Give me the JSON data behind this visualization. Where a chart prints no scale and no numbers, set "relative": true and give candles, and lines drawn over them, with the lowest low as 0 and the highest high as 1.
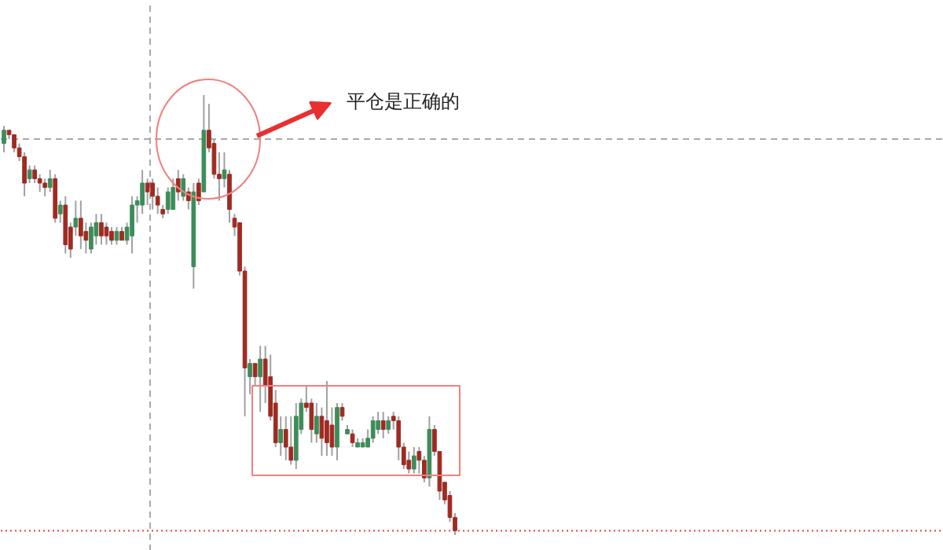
{
  "chart_data": {
    "type": "candlestick",
    "relative": true,
    "categories": [
      null,
      null,
      null,
      null,
      null,
      null,
      null,
      null,
      null,
      null,
      null,
      null,
      null,
      null,
      null,
      null,
      null,
      null,
      null,
      null,
      null,
      null,
      null,
      null,
      null,
      null,
      null,
      null,
      null,
      null,
      null,
      null,
      null,
      null,
      null,
      null,
      null,
      null,
      null,
      null,
      null,
      null,
      null,
      null,
      null,
      null,
      null,
      null,
      null,
      null,
      null,
      null,
      null,
      null,
      null,
      null,
      null,
      null,
      null,
      null,
      null,
      null,
      null,
      null,
      null,
      null,
      null,
      null,
      null,
      null,
      null,
      null,
      null,
      null,
      null,
      null,
      null,
      null,
      null,
      null,
      null,
      null,
      null,
      null,
      null,
      null,
      null,
      null,
      null
    ],
    "ohlc": [
      [
        0.89,
        0.93,
        0.87,
        0.92
      ],
      [
        0.92,
        0.92,
        0.9,
        0.91
      ],
      [
        0.91,
        0.91,
        0.87,
        0.88
      ],
      [
        0.88,
        0.89,
        0.85,
        0.86
      ],
      [
        0.86,
        0.87,
        0.77,
        0.8
      ],
      [
        0.81,
        0.84,
        0.8,
        0.83
      ],
      [
        0.83,
        0.84,
        0.8,
        0.81
      ],
      [
        0.81,
        0.82,
        0.78,
        0.8
      ],
      [
        0.8,
        0.81,
        0.77,
        0.79
      ],
      [
        0.79,
        0.83,
        0.78,
        0.81
      ],
      [
        0.81,
        0.82,
        0.71,
        0.72
      ],
      [
        0.73,
        0.76,
        0.71,
        0.75
      ],
      [
        0.75,
        0.77,
        0.64,
        0.66
      ],
      [
        0.7,
        0.71,
        0.63,
        0.65
      ],
      [
        0.7,
        0.76,
        0.68,
        0.72
      ],
      [
        0.72,
        0.76,
        0.65,
        0.68
      ],
      [
        0.69,
        0.71,
        0.64,
        0.67
      ],
      [
        0.65,
        0.71,
        0.64,
        0.7
      ],
      [
        0.68,
        0.73,
        0.66,
        0.71
      ],
      [
        0.71,
        0.73,
        0.66,
        0.68
      ],
      [
        0.7,
        0.71,
        0.66,
        0.68
      ],
      [
        0.69,
        0.7,
        0.66,
        0.67
      ],
      [
        0.67,
        0.7,
        0.66,
        0.69
      ],
      [
        0.69,
        0.7,
        0.67,
        0.67
      ],
      [
        0.67,
        0.71,
        0.66,
        0.7
      ],
      [
        0.68,
        0.77,
        0.64,
        0.75
      ],
      [
        0.75,
        0.77,
        0.71,
        0.76
      ],
      [
        0.75,
        0.83,
        0.73,
        0.8
      ],
      [
        0.8,
        0.81,
        0.75,
        0.78
      ],
      [
        0.8,
        0.81,
        0.74,
        0.77
      ],
      [
        0.77,
        0.79,
        0.73,
        0.75
      ],
      [
        0.74,
        0.75,
        0.72,
        0.73
      ],
      [
        0.74,
        0.79,
        0.73,
        0.78
      ],
      [
        0.74,
        0.81,
        0.74,
        0.79
      ],
      [
        0.81,
        0.83,
        0.76,
        0.78
      ],
      [
        0.77,
        0.82,
        0.76,
        0.81
      ],
      [
        0.78,
        0.79,
        0.74,
        0.76
      ],
      [
        0.61,
        0.8,
        0.56,
        0.78
      ],
      [
        0.8,
        0.81,
        0.75,
        0.76
      ],
      [
        0.78,
        1.0,
        0.78,
        0.92
      ],
      [
        0.92,
        0.98,
        0.87,
        0.88
      ],
      [
        0.89,
        0.9,
        0.81,
        0.82
      ],
      [
        0.82,
        0.87,
        0.76,
        0.81
      ],
      [
        0.81,
        0.87,
        0.79,
        0.83
      ],
      [
        0.82,
        0.83,
        0.71,
        0.74
      ],
      [
        0.72,
        0.73,
        0.68,
        0.7
      ],
      [
        0.71,
        0.71,
        0.59,
        0.6
      ],
      [
        0.6,
        0.61,
        0.27,
        0.38
      ],
      [
        0.36,
        0.4,
        0.32,
        0.39
      ],
      [
        0.39,
        0.39,
        0.34,
        0.36
      ],
      [
        0.36,
        0.43,
        0.28,
        0.4
      ],
      [
        0.4,
        0.43,
        0.3,
        0.34
      ],
      [
        0.36,
        0.41,
        0.26,
        0.27
      ],
      [
        0.3,
        0.33,
        0.2,
        0.21
      ],
      [
        0.21,
        0.27,
        0.18,
        0.24
      ],
      [
        0.24,
        0.27,
        0.17,
        0.2
      ],
      [
        0.2,
        0.27,
        0.16,
        0.17
      ],
      [
        0.17,
        0.3,
        0.15,
        0.27
      ],
      [
        0.24,
        0.31,
        0.23,
        0.3
      ],
      [
        0.3,
        0.34,
        0.28,
        0.29
      ],
      [
        0.3,
        0.31,
        0.21,
        0.24
      ],
      [
        0.23,
        0.3,
        0.21,
        0.27
      ],
      [
        0.27,
        0.29,
        0.18,
        0.22
      ],
      [
        0.26,
        0.35,
        0.18,
        0.21
      ],
      [
        0.25,
        0.29,
        0.18,
        0.2
      ],
      [
        0.2,
        0.3,
        0.17,
        0.29
      ],
      [
        0.29,
        0.3,
        0.26,
        0.27
      ],
      [
        0.23,
        0.25,
        0.23,
        0.24
      ],
      [
        0.23,
        0.24,
        0.2,
        0.21
      ],
      [
        0.2,
        0.22,
        0.2,
        0.21
      ],
      [
        0.2,
        0.22,
        0.2,
        0.21
      ],
      [
        0.2,
        0.24,
        0.2,
        0.22
      ],
      [
        0.22,
        0.27,
        0.21,
        0.26
      ],
      [
        0.24,
        0.28,
        0.23,
        0.26
      ],
      [
        0.26,
        0.28,
        0.22,
        0.24
      ],
      [
        0.24,
        0.27,
        0.23,
        0.26
      ],
      [
        0.27,
        0.28,
        0.24,
        0.26
      ],
      [
        0.26,
        0.27,
        0.17,
        0.2
      ],
      [
        0.2,
        0.21,
        0.15,
        0.16
      ],
      [
        0.17,
        0.19,
        0.14,
        0.15
      ],
      [
        0.15,
        0.2,
        0.14,
        0.18
      ],
      [
        0.19,
        0.2,
        0.14,
        0.17
      ],
      [
        0.17,
        0.18,
        0.12,
        0.13
      ],
      [
        0.13,
        0.27,
        0.11,
        0.24
      ],
      [
        0.24,
        0.25,
        0.18,
        0.19
      ],
      [
        0.19,
        0.19,
        0.08,
        0.1
      ],
      [
        0.12,
        0.12,
        0.07,
        0.08
      ],
      [
        0.09,
        0.1,
        0.03,
        0.04
      ],
      [
        0.04,
        0.05,
        0.0,
        0.01
      ]
    ],
    "colors": [
      "#3d8c5a",
      "#9e2b22",
      "#9e2b22",
      "#9e2b22",
      "#9e2b22",
      "#3d8c5a",
      "#9e2b22",
      "#9e2b22",
      "#9e2b22",
      "#3d8c5a",
      "#9e2b22",
      "#3d8c5a",
      "#9e2b22",
      "#9e2b22",
      "#3d8c5a",
      "#9e2b22",
      "#9e2b22",
      "#3d8c5a",
      "#3d8c5a",
      "#9e2b22",
      "#9e2b22",
      "#9e2b22",
      "#3d8c5a",
      "#9e2b22",
      "#3d8c5a",
      "#3d8c5a",
      "#3d8c5a",
      "#3d8c5a",
      "#9e2b22",
      "#9e2b22",
      "#9e2b22",
      "#9e2b22",
      "#3d8c5a",
      "#3d8c5a",
      "#9e2b22",
      "#3d8c5a",
      "#9e2b22",
      "#3d8c5a",
      "#9e2b22",
      "#3d8c5a",
      "#9e2b22",
      "#9e2b22",
      "#9e2b22",
      "#3d8c5a",
      "#9e2b22",
      "#9e2b22",
      "#9e2b22",
      "#9e2b22",
      "#3d8c5a",
      "#9e2b22",
      "#3d8c5a",
      "#9e2b22",
      "#9e2b22",
      "#9e2b22",
      "#3d8c5a",
      "#9e2b22",
      "#9e2b22",
      "#3d8c5a",
      "#3d8c5a",
      "#9e2b22",
      "#9e2b22",
      "#3d8c5a",
      "#9e2b22",
      "#9e2b22",
      "#9e2b22",
      "#3d8c5a",
      "#9e2b22",
      "#3d8c5a",
      "#9e2b22",
      "#3d8c5a",
      "#3d8c5a",
      "#3d8c5a",
      "#3d8c5a",
      "#3d8c5a",
      "#9e2b22",
      "#3d8c5a",
      "#9e2b22",
      "#9e2b22",
      "#9e2b22",
      "#9e2b22",
      "#3d8c5a",
      "#9e2b22",
      "#9e2b22",
      "#3d8c5a",
      "#9e2b22",
      "#9e2b22",
      "#9e2b22",
      "#9e2b22",
      "#9e2b22"
    ],
    "ref_lines": [
      {
        "axis": "y",
        "value": 0.9,
        "color": "#aaaaaa",
        "line_style": "dashed"
      },
      {
        "axis": "y",
        "value": 0.01,
        "color": "#e04040",
        "line_style": "dotted"
      }
    ],
    "annotations": [
      "平仓是正确的"
    ],
    "grid": false
  }
}
